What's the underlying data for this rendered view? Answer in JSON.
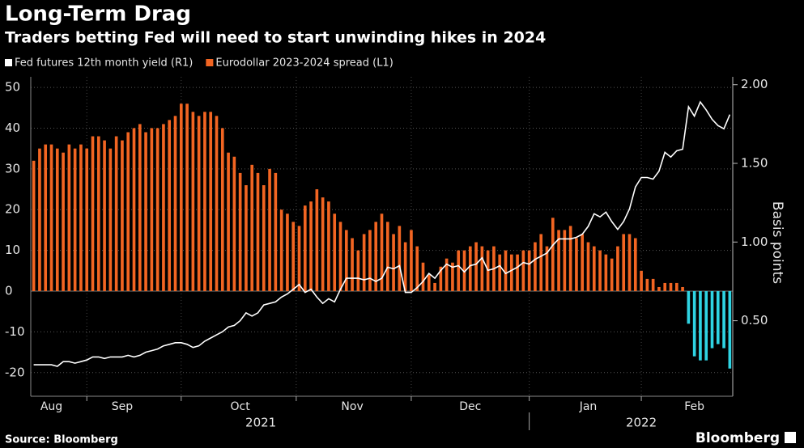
{
  "chart_data": {
    "type": "bar-line",
    "title": "Long-Term Drag",
    "subtitle": "Traders betting Fed will need to start unwinding hikes in 2024",
    "y2_label": "Basis points",
    "source": "Source: Bloomberg",
    "brand": "Bloomberg",
    "categories": [
      null,
      null,
      null,
      "Aug",
      null,
      null,
      null,
      null,
      null,
      null,
      null,
      null,
      null,
      null,
      null,
      "Sep",
      null,
      null,
      null,
      null,
      null,
      null,
      null,
      null,
      null,
      null,
      null,
      null,
      null,
      null,
      null,
      null,
      null,
      null,
      null,
      "Oct",
      null,
      null,
      null,
      null,
      null,
      null,
      null,
      null,
      null,
      null,
      null,
      null,
      null,
      null,
      null,
      null,
      null,
      null,
      "Nov",
      null,
      null,
      null,
      null,
      null,
      null,
      null,
      null,
      null,
      null,
      null,
      null,
      null,
      null,
      null,
      null,
      null,
      null,
      null,
      "Dec",
      null,
      null,
      null,
      null,
      null,
      null,
      null,
      null,
      null,
      null,
      null,
      null,
      null,
      null,
      null,
      null,
      null,
      null,
      null,
      "Jan",
      null,
      null,
      null,
      null,
      null,
      null,
      null,
      null,
      null,
      null,
      null,
      null,
      null,
      null,
      null,
      null,
      null,
      "Feb",
      null,
      null,
      null,
      null,
      null,
      null
    ],
    "x_groups": [
      {
        "label": "2021",
        "span": 5
      },
      {
        "label": "2022",
        "span": 2
      }
    ],
    "series": [
      {
        "name": "Fed futures 12th month yield (R1)",
        "type": "line",
        "axis": "y2",
        "color": "#ffffff",
        "values": [
          0.22,
          0.22,
          0.22,
          0.22,
          0.21,
          0.24,
          0.24,
          0.23,
          0.24,
          0.25,
          0.27,
          0.27,
          0.26,
          0.27,
          0.27,
          0.27,
          0.28,
          0.27,
          0.28,
          0.3,
          0.31,
          0.32,
          0.34,
          0.35,
          0.36,
          0.36,
          0.35,
          0.33,
          0.34,
          0.37,
          0.39,
          0.41,
          0.43,
          0.46,
          0.47,
          0.5,
          0.55,
          0.53,
          0.55,
          0.6,
          0.61,
          0.62,
          0.65,
          0.67,
          0.7,
          0.73,
          0.68,
          0.7,
          0.65,
          0.61,
          0.64,
          0.62,
          0.7,
          0.77,
          0.77,
          0.77,
          0.76,
          0.77,
          0.75,
          0.77,
          0.84,
          0.83,
          0.85,
          0.68,
          0.68,
          0.71,
          0.75,
          0.8,
          0.77,
          0.82,
          0.86,
          0.84,
          0.85,
          0.81,
          0.85,
          0.86,
          0.9,
          0.82,
          0.83,
          0.85,
          0.8,
          0.82,
          0.84,
          0.87,
          0.86,
          0.89,
          0.91,
          0.93,
          0.98,
          1.02,
          1.02,
          1.02,
          1.03,
          1.05,
          1.1,
          1.18,
          1.16,
          1.19,
          1.13,
          1.08,
          1.13,
          1.21,
          1.35,
          1.41,
          1.41,
          1.4,
          1.45,
          1.57,
          1.54,
          1.58,
          1.59,
          1.86,
          1.8,
          1.89,
          1.84,
          1.78,
          1.74,
          1.72,
          1.81
        ]
      },
      {
        "name": "Eurodollar 2023-2024 spread (L1)",
        "type": "bar",
        "color": "#f26522",
        "negative_color": "#2fd4e3",
        "values": [
          32,
          35,
          36,
          36,
          35,
          34,
          36,
          35,
          36,
          35,
          38,
          38,
          37,
          35,
          38,
          37,
          39,
          40,
          41,
          39,
          40,
          40,
          41,
          42,
          43,
          46,
          46,
          44,
          43,
          44,
          44,
          43,
          40,
          34,
          33,
          29,
          26,
          31,
          29,
          26,
          30,
          29,
          20,
          19,
          17,
          16,
          21,
          22,
          25,
          23,
          22,
          19,
          17,
          15,
          13,
          10,
          14,
          15,
          17,
          19,
          17,
          14,
          16,
          12,
          15,
          11,
          7,
          4,
          2,
          6,
          8,
          7,
          10,
          10,
          11,
          12,
          11,
          10,
          11,
          9,
          10,
          9,
          9,
          10,
          10,
          12,
          14,
          11,
          18,
          15,
          15,
          16,
          13,
          14,
          12,
          11,
          10,
          9,
          8,
          11,
          14,
          14,
          13,
          5,
          3,
          3,
          1,
          2,
          2,
          2,
          1,
          -8,
          -16,
          -17,
          -17,
          -14,
          -13,
          -14,
          -19
        ]
      }
    ],
    "ylim": [
      -25.8,
      52.6
    ],
    "yticks": [
      -20,
      -10,
      0,
      10,
      20,
      30,
      40,
      50
    ],
    "y2lim": [
      0.02,
      2.05
    ],
    "y2ticks": [
      {
        "value": 0.5,
        "label": "0.50"
      },
      {
        "value": 1.0,
        "label": "1.00"
      },
      {
        "value": 1.5,
        "label": "1.50"
      },
      {
        "value": 2.0,
        "label": "2.00"
      }
    ],
    "grid": true
  }
}
